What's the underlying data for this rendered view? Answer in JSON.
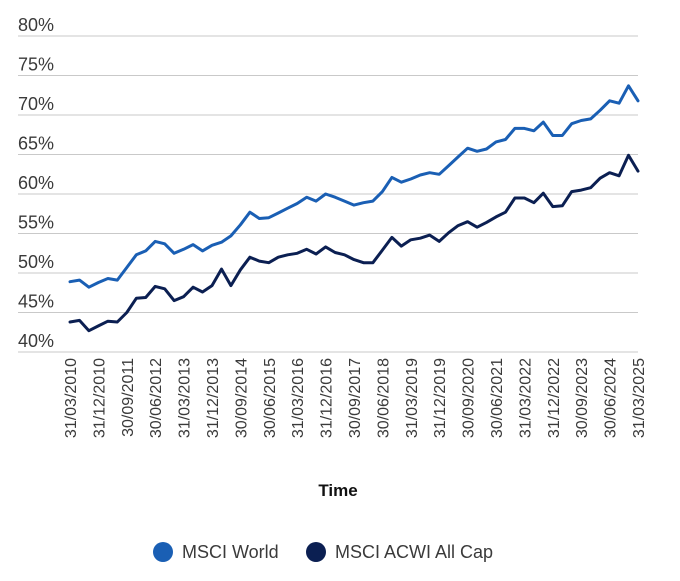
{
  "chart_data": {
    "type": "line",
    "xlabel": "Time",
    "ylabel": "",
    "ylim": [
      40,
      80
    ],
    "yticks": [
      "80%",
      "75%",
      "70%",
      "65%",
      "60%",
      "55%",
      "50%",
      "45%",
      "40%"
    ],
    "xticks": [
      "31/03/2010",
      "31/12/2010",
      "30/09/2011",
      "30/06/2012",
      "31/03/2013",
      "31/12/2013",
      "30/09/2014",
      "30/06/2015",
      "31/03/2016",
      "31/12/2016",
      "30/09/2017",
      "30/06/2018",
      "31/03/2019",
      "31/12/2019",
      "30/09/2020",
      "30/06/2021",
      "31/03/2022",
      "31/12/2022",
      "30/09/2023",
      "30/06/2024",
      "31/03/2025"
    ],
    "grid": true,
    "legend_position": "bottom",
    "series": [
      {
        "name": "MSCI World",
        "color": "#1a5fb4",
        "values": [
          48.9,
          49.1,
          48.2,
          48.8,
          49.3,
          49.1,
          50.7,
          52.3,
          52.8,
          54.0,
          53.7,
          52.5,
          53.0,
          53.6,
          52.8,
          53.5,
          53.9,
          54.7,
          56.1,
          57.7,
          56.9,
          57.0,
          57.6,
          58.2,
          58.8,
          59.6,
          59.1,
          60.0,
          59.6,
          59.1,
          58.6,
          58.9,
          59.1,
          60.3,
          62.1,
          61.5,
          61.9,
          62.4,
          62.7,
          62.5,
          63.6,
          64.7,
          65.8,
          65.4,
          65.7,
          66.6,
          66.9,
          68.3,
          68.3,
          68.0,
          69.1,
          67.4,
          67.4,
          68.9,
          69.3,
          69.5,
          70.6,
          71.8,
          71.5,
          73.7,
          71.8
        ]
      },
      {
        "name": "MSCI ACWI All Cap",
        "color": "#0b1f52",
        "values": [
          43.8,
          44.0,
          42.7,
          43.3,
          43.9,
          43.8,
          45.0,
          46.8,
          46.9,
          48.3,
          48.0,
          46.5,
          47.0,
          48.2,
          47.6,
          48.4,
          50.5,
          48.4,
          50.4,
          52.0,
          51.5,
          51.3,
          52.0,
          52.3,
          52.5,
          53.0,
          52.4,
          53.3,
          52.6,
          52.3,
          51.7,
          51.3,
          51.3,
          52.9,
          54.5,
          53.4,
          54.2,
          54.4,
          54.8,
          54.0,
          55.1,
          56.0,
          56.5,
          55.8,
          56.4,
          57.1,
          57.7,
          59.5,
          59.5,
          58.9,
          60.1,
          58.4,
          58.5,
          60.3,
          60.5,
          60.8,
          62.0,
          62.7,
          62.3,
          64.9,
          62.9
        ]
      }
    ]
  }
}
